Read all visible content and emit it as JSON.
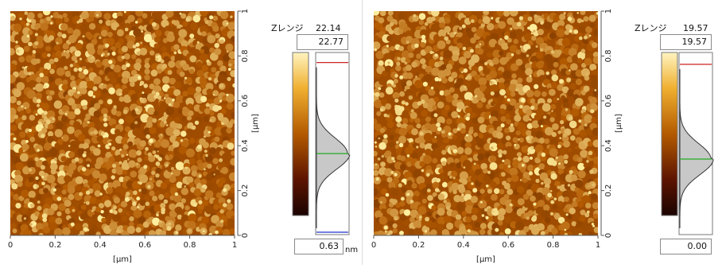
{
  "scans": [
    {
      "image": {
        "x_range": [
          0,
          1
        ],
        "y_range": [
          0,
          1
        ],
        "x_unit": "[μm]",
        "y_unit": "[μm]",
        "seed": 7
      },
      "x_ticks": [
        "0",
        "0.2",
        "0.4",
        "0.6",
        "0.8",
        "1"
      ],
      "y_ticks": [
        "0",
        "0.2",
        "0.4",
        "0.6",
        "0.8",
        "1"
      ],
      "z_range_label": "Zレンジ",
      "z_range_value": "22.14",
      "z_max": "22.77",
      "z_min": "0.63",
      "z_unit": "nm",
      "marker_top_level": 0.945,
      "marker_mid_level": 0.445,
      "marker_bottom_level": 0.0
    },
    {
      "image": {
        "x_range": [
          0,
          1
        ],
        "y_range": [
          0,
          1
        ],
        "x_unit": "[μm]",
        "y_unit": "[μm]",
        "seed": 19
      },
      "x_ticks": [
        "0",
        "0.2",
        "0.4",
        "0.6",
        "0.8",
        "1"
      ],
      "y_ticks": [
        "0",
        "0.2",
        "0.4",
        "0.6",
        "0.8",
        "1"
      ],
      "z_range_label": "Zレンジ",
      "z_range_value": "19.57",
      "z_max": "19.57",
      "z_min": "0.00",
      "z_unit": "nm",
      "marker_top_level": 0.935,
      "marker_mid_level": 0.415,
      "marker_bottom_level": null
    }
  ],
  "colors": {
    "afm_dark": "#2a0600",
    "afm_mid": "#b35a00",
    "afm_bright": "#fff0a0",
    "hist_fill": "#c8c8c8",
    "marker_top": "#cc2222",
    "marker_mid": "#22aa22",
    "marker_bottom": "#2233cc"
  }
}
